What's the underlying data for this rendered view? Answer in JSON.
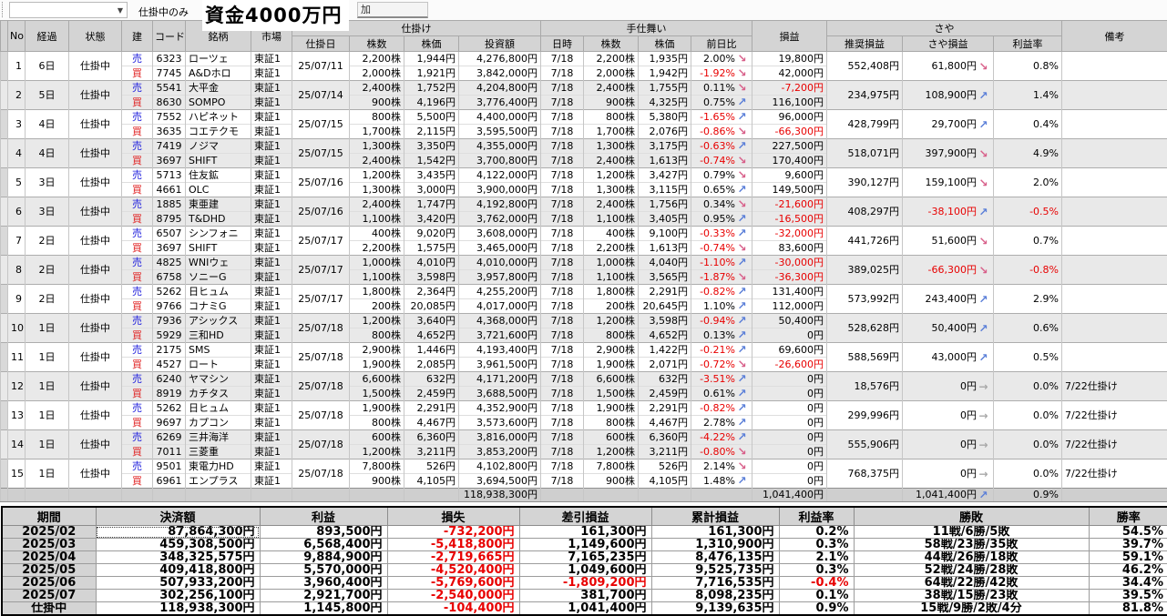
{
  "colors": {
    "negative": "#e80000",
    "sell": "#2222dd",
    "buy": "#e02222",
    "arrow_down": "#d8608a",
    "arrow_up": "#5b7fd8",
    "arrow_flat": "#a8a8a8"
  },
  "toolbar": {
    "dropdown_value": "",
    "filter_label": "仕掛中のみ",
    "capital_label": "資金4000万円",
    "partial_tab_label": "加"
  },
  "table": {
    "headers": {
      "no": "No",
      "elapsed": "経過",
      "status": "状態",
      "side": "建",
      "code": "コード",
      "name": "銘柄",
      "market": "市場",
      "entry_group": "仕掛け",
      "entry_date": "仕掛日",
      "qty": "株数",
      "price": "株価",
      "amount": "投資額",
      "exit_group": "手仕舞い",
      "exit_date": "日時",
      "exit_qty": "株数",
      "exit_price": "株価",
      "change": "前日比",
      "pl": "損益",
      "saya_group": "さや",
      "rec_pl": "推奨損益",
      "saya_pl": "さや損益",
      "rate": "利益率",
      "note": "備考"
    },
    "rows": [
      {
        "no": "1",
        "elapsed": "6日",
        "status": "仕掛中",
        "date": "25/07/11",
        "rec": "552,408円",
        "saya": "61,800円",
        "saya_arrow": "down",
        "rate": "0.8%",
        "note": "",
        "legs": [
          {
            "side": "売",
            "code": "6323",
            "name": "ローツェ",
            "market": "東証1",
            "qty": "2,200株",
            "price": "1,944円",
            "amount": "4,276,800円",
            "exit_date": "7/18",
            "exit_qty": "2,200株",
            "exit_price": "1,935円",
            "change": "2.00%",
            "change_arrow": "down",
            "pl": "19,800円"
          },
          {
            "side": "買",
            "code": "7745",
            "name": "A&Dホロ",
            "market": "東証1",
            "qty": "2,000株",
            "price": "1,921円",
            "amount": "3,842,000円",
            "exit_date": "7/18",
            "exit_qty": "2,000株",
            "exit_price": "1,942円",
            "change": "-1.92%",
            "change_arrow": "down",
            "pl": "42,000円"
          }
        ]
      },
      {
        "no": "2",
        "elapsed": "5日",
        "status": "仕掛中",
        "date": "25/07/14",
        "rec": "234,975円",
        "saya": "108,900円",
        "saya_arrow": "up",
        "rate": "1.4%",
        "note": "",
        "legs": [
          {
            "side": "売",
            "code": "5541",
            "name": "大平金",
            "market": "東証1",
            "qty": "2,400株",
            "price": "1,752円",
            "amount": "4,204,800円",
            "exit_date": "7/18",
            "exit_qty": "2,400株",
            "exit_price": "1,755円",
            "change": "0.11%",
            "change_arrow": "down",
            "pl": "-7,200円"
          },
          {
            "side": "買",
            "code": "8630",
            "name": "SOMPO",
            "market": "東証1",
            "qty": "900株",
            "price": "4,196円",
            "amount": "3,776,400円",
            "exit_date": "7/18",
            "exit_qty": "900株",
            "exit_price": "4,325円",
            "change": "0.75%",
            "change_arrow": "up",
            "pl": "116,100円"
          }
        ]
      },
      {
        "no": "3",
        "elapsed": "4日",
        "status": "仕掛中",
        "date": "25/07/15",
        "rec": "428,799円",
        "saya": "29,700円",
        "saya_arrow": "up",
        "rate": "0.4%",
        "note": "",
        "legs": [
          {
            "side": "売",
            "code": "7552",
            "name": "ハピネット",
            "market": "東証1",
            "qty": "800株",
            "price": "5,500円",
            "amount": "4,400,000円",
            "exit_date": "7/18",
            "exit_qty": "800株",
            "exit_price": "5,380円",
            "change": "-1.65%",
            "change_arrow": "up",
            "pl": "96,000円"
          },
          {
            "side": "買",
            "code": "3635",
            "name": "コエテクモ",
            "market": "東証1",
            "qty": "1,700株",
            "price": "2,115円",
            "amount": "3,595,500円",
            "exit_date": "7/18",
            "exit_qty": "1,700株",
            "exit_price": "2,076円",
            "change": "-0.86%",
            "change_arrow": "down",
            "pl": "-66,300円"
          }
        ]
      },
      {
        "no": "4",
        "elapsed": "4日",
        "status": "仕掛中",
        "date": "25/07/15",
        "rec": "518,071円",
        "saya": "397,900円",
        "saya_arrow": "down",
        "rate": "4.9%",
        "note": "",
        "legs": [
          {
            "side": "売",
            "code": "7419",
            "name": "ノジマ",
            "market": "東証1",
            "qty": "1,300株",
            "price": "3,350円",
            "amount": "4,355,000円",
            "exit_date": "7/18",
            "exit_qty": "1,300株",
            "exit_price": "3,175円",
            "change": "-0.63%",
            "change_arrow": "up",
            "pl": "227,500円"
          },
          {
            "side": "買",
            "code": "3697",
            "name": "SHIFT",
            "market": "東証1",
            "qty": "2,400株",
            "price": "1,542円",
            "amount": "3,700,800円",
            "exit_date": "7/18",
            "exit_qty": "2,400株",
            "exit_price": "1,613円",
            "change": "-0.74%",
            "change_arrow": "down",
            "pl": "170,400円"
          }
        ]
      },
      {
        "no": "5",
        "elapsed": "3日",
        "status": "仕掛中",
        "date": "25/07/16",
        "rec": "390,127円",
        "saya": "159,100円",
        "saya_arrow": "down",
        "rate": "2.0%",
        "note": "",
        "legs": [
          {
            "side": "売",
            "code": "5713",
            "name": "住友鉱",
            "market": "東証1",
            "qty": "1,200株",
            "price": "3,435円",
            "amount": "4,122,000円",
            "exit_date": "7/18",
            "exit_qty": "1,200株",
            "exit_price": "3,427円",
            "change": "0.79%",
            "change_arrow": "down",
            "pl": "9,600円"
          },
          {
            "side": "買",
            "code": "4661",
            "name": "OLC",
            "market": "東証1",
            "qty": "1,300株",
            "price": "3,000円",
            "amount": "3,900,000円",
            "exit_date": "7/18",
            "exit_qty": "1,300株",
            "exit_price": "3,115円",
            "change": "0.65%",
            "change_arrow": "up",
            "pl": "149,500円"
          }
        ]
      },
      {
        "no": "6",
        "elapsed": "3日",
        "status": "仕掛中",
        "date": "25/07/16",
        "rec": "408,297円",
        "saya": "-38,100円",
        "saya_arrow": "up",
        "rate": "-0.5%",
        "note": "",
        "legs": [
          {
            "side": "売",
            "code": "1885",
            "name": "東亜建",
            "market": "東証1",
            "qty": "2,400株",
            "price": "1,747円",
            "amount": "4,192,800円",
            "exit_date": "7/18",
            "exit_qty": "2,400株",
            "exit_price": "1,756円",
            "change": "0.34%",
            "change_arrow": "down",
            "pl": "-21,600円"
          },
          {
            "side": "買",
            "code": "8795",
            "name": "T&DHD",
            "market": "東証1",
            "qty": "1,100株",
            "price": "3,420円",
            "amount": "3,762,000円",
            "exit_date": "7/18",
            "exit_qty": "1,100株",
            "exit_price": "3,405円",
            "change": "0.95%",
            "change_arrow": "up",
            "pl": "-16,500円"
          }
        ]
      },
      {
        "no": "7",
        "elapsed": "2日",
        "status": "仕掛中",
        "date": "25/07/17",
        "rec": "441,726円",
        "saya": "51,600円",
        "saya_arrow": "down",
        "rate": "0.7%",
        "note": "",
        "legs": [
          {
            "side": "売",
            "code": "6507",
            "name": "シンフォニ",
            "market": "東証1",
            "qty": "400株",
            "price": "9,020円",
            "amount": "3,608,000円",
            "exit_date": "7/18",
            "exit_qty": "400株",
            "exit_price": "9,100円",
            "change": "-0.33%",
            "change_arrow": "up",
            "pl": "-32,000円"
          },
          {
            "side": "買",
            "code": "3697",
            "name": "SHIFT",
            "market": "東証1",
            "qty": "2,200株",
            "price": "1,575円",
            "amount": "3,465,000円",
            "exit_date": "7/18",
            "exit_qty": "2,200株",
            "exit_price": "1,613円",
            "change": "-0.74%",
            "change_arrow": "down",
            "pl": "83,600円"
          }
        ]
      },
      {
        "no": "8",
        "elapsed": "2日",
        "status": "仕掛中",
        "date": "25/07/17",
        "rec": "389,025円",
        "saya": "-66,300円",
        "saya_arrow": "down",
        "rate": "-0.8%",
        "note": "",
        "legs": [
          {
            "side": "売",
            "code": "4825",
            "name": "WNIウェ",
            "market": "東証1",
            "qty": "1,000株",
            "price": "4,010円",
            "amount": "4,010,000円",
            "exit_date": "7/18",
            "exit_qty": "1,000株",
            "exit_price": "4,040円",
            "change": "-1.10%",
            "change_arrow": "up",
            "pl": "-30,000円"
          },
          {
            "side": "買",
            "code": "6758",
            "name": "ソニーG",
            "market": "東証1",
            "qty": "1,100株",
            "price": "3,598円",
            "amount": "3,957,800円",
            "exit_date": "7/18",
            "exit_qty": "1,100株",
            "exit_price": "3,565円",
            "change": "-1.87%",
            "change_arrow": "down",
            "pl": "-36,300円"
          }
        ]
      },
      {
        "no": "9",
        "elapsed": "2日",
        "status": "仕掛中",
        "date": "25/07/17",
        "rec": "573,992円",
        "saya": "243,400円",
        "saya_arrow": "up",
        "rate": "2.9%",
        "note": "",
        "legs": [
          {
            "side": "売",
            "code": "5262",
            "name": "日ヒュム",
            "market": "東証1",
            "qty": "1,800株",
            "price": "2,364円",
            "amount": "4,255,200円",
            "exit_date": "7/18",
            "exit_qty": "1,800株",
            "exit_price": "2,291円",
            "change": "-0.82%",
            "change_arrow": "up",
            "pl": "131,400円"
          },
          {
            "side": "買",
            "code": "9766",
            "name": "コナミG",
            "market": "東証1",
            "qty": "200株",
            "price": "20,085円",
            "amount": "4,017,000円",
            "exit_date": "7/18",
            "exit_qty": "200株",
            "exit_price": "20,645円",
            "change": "1.10%",
            "change_arrow": "up",
            "pl": "112,000円"
          }
        ]
      },
      {
        "no": "10",
        "elapsed": "1日",
        "status": "仕掛中",
        "date": "25/07/18",
        "rec": "528,628円",
        "saya": "50,400円",
        "saya_arrow": "up",
        "rate": "0.6%",
        "note": "",
        "legs": [
          {
            "side": "売",
            "code": "7936",
            "name": "アシックス",
            "market": "東証1",
            "qty": "1,200株",
            "price": "3,640円",
            "amount": "4,368,000円",
            "exit_date": "7/18",
            "exit_qty": "1,200株",
            "exit_price": "3,598円",
            "change": "-0.94%",
            "change_arrow": "up",
            "pl": "50,400円"
          },
          {
            "side": "買",
            "code": "5929",
            "name": "三和HD",
            "market": "東証1",
            "qty": "800株",
            "price": "4,652円",
            "amount": "3,721,600円",
            "exit_date": "7/18",
            "exit_qty": "800株",
            "exit_price": "4,652円",
            "change": "0.13%",
            "change_arrow": "up",
            "pl": "0円"
          }
        ]
      },
      {
        "no": "11",
        "elapsed": "1日",
        "status": "仕掛中",
        "date": "25/07/18",
        "rec": "588,569円",
        "saya": "43,000円",
        "saya_arrow": "up",
        "rate": "0.5%",
        "note": "",
        "legs": [
          {
            "side": "売",
            "code": "2175",
            "name": "SMS",
            "market": "東証1",
            "qty": "2,900株",
            "price": "1,446円",
            "amount": "4,193,400円",
            "exit_date": "7/18",
            "exit_qty": "2,900株",
            "exit_price": "1,422円",
            "change": "-0.21%",
            "change_arrow": "up",
            "pl": "69,600円"
          },
          {
            "side": "買",
            "code": "4527",
            "name": "ロート",
            "market": "東証1",
            "qty": "1,900株",
            "price": "2,085円",
            "amount": "3,961,500円",
            "exit_date": "7/18",
            "exit_qty": "1,900株",
            "exit_price": "2,071円",
            "change": "-0.72%",
            "change_arrow": "down",
            "pl": "-26,600円"
          }
        ]
      },
      {
        "no": "12",
        "elapsed": "1日",
        "status": "仕掛中",
        "date": "25/07/18",
        "rec": "18,576円",
        "saya": "0円",
        "saya_arrow": "flat",
        "rate": "0.0%",
        "note": "7/22仕掛け",
        "legs": [
          {
            "side": "売",
            "code": "6240",
            "name": "ヤマシン",
            "market": "東証1",
            "qty": "6,600株",
            "price": "632円",
            "amount": "4,171,200円",
            "exit_date": "7/18",
            "exit_qty": "6,600株",
            "exit_price": "632円",
            "change": "-3.51%",
            "change_arrow": "up",
            "pl": "0円"
          },
          {
            "side": "買",
            "code": "8919",
            "name": "カチタス",
            "market": "東証1",
            "qty": "1,500株",
            "price": "2,459円",
            "amount": "3,688,500円",
            "exit_date": "7/18",
            "exit_qty": "1,500株",
            "exit_price": "2,459円",
            "change": "0.61%",
            "change_arrow": "up",
            "pl": "0円"
          }
        ]
      },
      {
        "no": "13",
        "elapsed": "1日",
        "status": "仕掛中",
        "date": "25/07/18",
        "rec": "299,996円",
        "saya": "0円",
        "saya_arrow": "flat",
        "rate": "0.0%",
        "note": "7/22仕掛け",
        "legs": [
          {
            "side": "売",
            "code": "5262",
            "name": "日ヒュム",
            "market": "東証1",
            "qty": "1,900株",
            "price": "2,291円",
            "amount": "4,352,900円",
            "exit_date": "7/18",
            "exit_qty": "1,900株",
            "exit_price": "2,291円",
            "change": "-0.82%",
            "change_arrow": "up",
            "pl": "0円"
          },
          {
            "side": "買",
            "code": "9697",
            "name": "カプコン",
            "market": "東証1",
            "qty": "800株",
            "price": "4,467円",
            "amount": "3,573,600円",
            "exit_date": "7/18",
            "exit_qty": "800株",
            "exit_price": "4,467円",
            "change": "2.78%",
            "change_arrow": "up",
            "pl": "0円"
          }
        ]
      },
      {
        "no": "14",
        "elapsed": "1日",
        "status": "仕掛中",
        "date": "25/07/18",
        "rec": "555,906円",
        "saya": "0円",
        "saya_arrow": "flat",
        "rate": "0.0%",
        "note": "7/22仕掛け",
        "legs": [
          {
            "side": "売",
            "code": "6269",
            "name": "三井海洋",
            "market": "東証1",
            "qty": "600株",
            "price": "6,360円",
            "amount": "3,816,000円",
            "exit_date": "7/18",
            "exit_qty": "600株",
            "exit_price": "6,360円",
            "change": "-4.22%",
            "change_arrow": "up",
            "pl": "0円"
          },
          {
            "side": "買",
            "code": "7011",
            "name": "三菱重",
            "market": "東証1",
            "qty": "1,200株",
            "price": "3,211円",
            "amount": "3,853,200円",
            "exit_date": "7/18",
            "exit_qty": "1,200株",
            "exit_price": "3,211円",
            "change": "-0.80%",
            "change_arrow": "down",
            "pl": "0円"
          }
        ]
      },
      {
        "no": "15",
        "elapsed": "1日",
        "status": "仕掛中",
        "date": "25/07/18",
        "rec": "768,375円",
        "saya": "0円",
        "saya_arrow": "flat",
        "rate": "0.0%",
        "note": "7/22仕掛け",
        "legs": [
          {
            "side": "売",
            "code": "9501",
            "name": "東電力HD",
            "market": "東証1",
            "qty": "7,800株",
            "price": "526円",
            "amount": "4,102,800円",
            "exit_date": "7/18",
            "exit_qty": "7,800株",
            "exit_price": "526円",
            "change": "2.14%",
            "change_arrow": "down",
            "pl": "0円"
          },
          {
            "side": "買",
            "code": "6961",
            "name": "エンプラス",
            "market": "東証1",
            "qty": "900株",
            "price": "4,105円",
            "amount": "3,694,500円",
            "exit_date": "7/18",
            "exit_qty": "900株",
            "exit_price": "4,105円",
            "change": "1.48%",
            "change_arrow": "up",
            "pl": "0円"
          }
        ]
      }
    ],
    "total": {
      "amount": "118,938,300円",
      "pl": "1,041,400円",
      "saya": "1,041,400円",
      "saya_arrow": "up",
      "rate": "0.9%"
    }
  },
  "summary": {
    "headers": [
      "期間",
      "決済額",
      "利益",
      "損失",
      "差引損益",
      "累計損益",
      "利益率",
      "勝敗",
      "勝率"
    ],
    "rows": [
      [
        "2025/02",
        "87,864,300円",
        "893,500円",
        "-732,200円",
        "161,300円",
        "161,300円",
        "0.2%",
        "11戦/6勝/5敗",
        "54.5%"
      ],
      [
        "2025/03",
        "459,308,500円",
        "6,568,400円",
        "-5,418,800円",
        "1,149,600円",
        "1,310,900円",
        "0.3%",
        "58戦/23勝/35敗",
        "39.7%"
      ],
      [
        "2025/04",
        "348,325,575円",
        "9,884,900円",
        "-2,719,665円",
        "7,165,235円",
        "8,476,135円",
        "2.1%",
        "44戦/26勝/18敗",
        "59.1%"
      ],
      [
        "2025/05",
        "409,418,800円",
        "5,570,000円",
        "-4,520,400円",
        "1,049,600円",
        "9,525,735円",
        "0.3%",
        "52戦/24勝/28敗",
        "46.2%"
      ],
      [
        "2025/06",
        "507,933,200円",
        "3,960,400円",
        "-5,769,600円",
        "-1,809,200円",
        "7,716,535円",
        "-0.4%",
        "64戦/22勝/42敗",
        "34.4%"
      ],
      [
        "2025/07",
        "302,256,100円",
        "2,921,700円",
        "-2,540,000円",
        "381,700円",
        "8,098,235円",
        "0.1%",
        "38戦/15勝/23敗",
        "39.5%"
      ],
      [
        "仕掛中",
        "118,938,300円",
        "1,145,800円",
        "-104,400円",
        "1,041,400円",
        "9,139,635円",
        "0.9%",
        "15戦/9勝/2敗/4分",
        "81.8%"
      ]
    ],
    "selected_cell": {
      "row": 0,
      "col": 1
    }
  }
}
